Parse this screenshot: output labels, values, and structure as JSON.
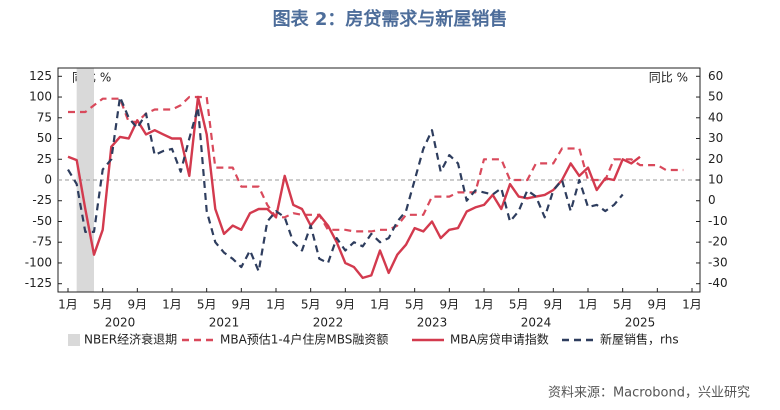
{
  "chart_data": {
    "type": "line",
    "title": "图表 2：房贷需求与新屋销售",
    "source": "资料来源：Macrobond，兴业研究",
    "y_unit_label": "同比 %",
    "y2_unit_label": "同比 %",
    "x": [
      "2020-01",
      "2020-02",
      "2020-03",
      "2020-04",
      "2020-05",
      "2020-06",
      "2020-07",
      "2020-08",
      "2020-09",
      "2020-10",
      "2020-11",
      "2020-12",
      "2021-01",
      "2021-02",
      "2021-03",
      "2021-04",
      "2021-05",
      "2021-06",
      "2021-07",
      "2021-08",
      "2021-09",
      "2021-10",
      "2021-11",
      "2021-12",
      "2022-01",
      "2022-02",
      "2022-03",
      "2022-04",
      "2022-05",
      "2022-06",
      "2022-07",
      "2022-08",
      "2022-09",
      "2022-10",
      "2022-11",
      "2022-12",
      "2023-01",
      "2023-02",
      "2023-03",
      "2023-04",
      "2023-05",
      "2023-06",
      "2023-07",
      "2023-08",
      "2023-09",
      "2023-10",
      "2023-11",
      "2023-12",
      "2024-01",
      "2024-02",
      "2024-03",
      "2024-04",
      "2024-05",
      "2024-06",
      "2024-07",
      "2024-08",
      "2024-09",
      "2024-10",
      "2024-11",
      "2024-12",
      "2025-01",
      "2025-02",
      "2025-03",
      "2025-04",
      "2025-05",
      "2025-06",
      "2025-07",
      "2025-08",
      "2025-09",
      "2025-10",
      "2025-11",
      "2025-12"
    ],
    "xlim": [
      "2020-01",
      "2026-01"
    ],
    "xticks": [
      {
        "value": "2020-01",
        "label": "1月"
      },
      {
        "value": "2020-05",
        "label": "5月"
      },
      {
        "value": "2020-09",
        "label": "9月"
      },
      {
        "value": "2021-01",
        "label": "1月"
      },
      {
        "value": "2021-05",
        "label": "5月"
      },
      {
        "value": "2021-09",
        "label": "9月"
      },
      {
        "value": "2022-01",
        "label": "1月"
      },
      {
        "value": "2022-05",
        "label": "5月"
      },
      {
        "value": "2022-09",
        "label": "9月"
      },
      {
        "value": "2023-01",
        "label": "1月"
      },
      {
        "value": "2023-05",
        "label": "5月"
      },
      {
        "value": "2023-09",
        "label": "9月"
      },
      {
        "value": "2024-01",
        "label": "1月"
      },
      {
        "value": "2024-05",
        "label": "5月"
      },
      {
        "value": "2024-09",
        "label": "9月"
      },
      {
        "value": "2025-01",
        "label": "1月"
      },
      {
        "value": "2025-05",
        "label": "5月"
      },
      {
        "value": "2025-09",
        "label": "9月"
      },
      {
        "value": "2026-01",
        "label": "1月"
      }
    ],
    "years": [
      "2020",
      "2021",
      "2022",
      "2023",
      "2024",
      "2025"
    ],
    "ylim": [
      -135,
      135
    ],
    "yticks": [
      125,
      100,
      75,
      50,
      25,
      0,
      -25,
      -50,
      -75,
      -100,
      -125
    ],
    "y2lim": [
      -44,
      64
    ],
    "y2ticks": [
      60,
      50,
      40,
      30,
      20,
      10,
      0,
      -10,
      -20,
      -30,
      -40
    ],
    "shaded": {
      "name": "NBER经济衰退期",
      "color": "#d9d9d9",
      "start": "2020-02",
      "end": "2020-04"
    },
    "series": [
      {
        "name": "MBA预估1-4户住房MBS融资额",
        "color": "#d9495b",
        "dashed": true,
        "values": [
          82,
          82,
          82,
          90,
          98,
          98,
          98,
          70,
          70,
          80,
          85,
          85,
          85,
          90,
          100,
          100,
          100,
          15,
          15,
          15,
          -8,
          -8,
          -8,
          -30,
          -45,
          -45,
          -40,
          -42,
          -42,
          -42,
          -60,
          -60,
          -60,
          -62,
          -62,
          -62,
          -60,
          -60,
          -55,
          -42,
          -42,
          -42,
          -20,
          -20,
          -20,
          -15,
          -15,
          -15,
          25,
          25,
          25,
          0,
          0,
          0,
          20,
          20,
          20,
          38,
          38,
          38,
          0,
          0,
          0,
          25,
          25,
          25,
          18,
          18,
          18,
          12,
          12,
          12
        ]
      },
      {
        "name": "MBA房贷申请指数",
        "color": "#d33a4e",
        "dashed": false,
        "values": [
          28,
          24,
          -35,
          -90,
          -60,
          40,
          52,
          50,
          72,
          55,
          60,
          55,
          50,
          50,
          5,
          100,
          55,
          -35,
          -65,
          -55,
          -60,
          -40,
          -35,
          -35,
          -45,
          5,
          -30,
          -35,
          -55,
          -42,
          -55,
          -75,
          -100,
          -105,
          -118,
          -115,
          -85,
          -112,
          -90,
          -78,
          -58,
          -62,
          -50,
          -70,
          -60,
          -58,
          -38,
          -33,
          -30,
          -18,
          -35,
          -5,
          -20,
          -22,
          -20,
          -18,
          -12,
          0,
          20,
          5,
          15,
          -12,
          2,
          0,
          25,
          20,
          28,
          null,
          null,
          null,
          null,
          null
        ]
      },
      {
        "name": "新屋销售，rhs",
        "color": "#2e3d5e",
        "dashed": true,
        "axis": "y2",
        "values": [
          15,
          8,
          -15,
          -15,
          15,
          20,
          50,
          40,
          35,
          42,
          22,
          24,
          25,
          14,
          30,
          45,
          -5,
          -20,
          -25,
          -28,
          -32,
          -24,
          -34,
          -10,
          -5,
          -8,
          -20,
          -24,
          -12,
          -28,
          -30,
          -18,
          -24,
          -20,
          -22,
          -16,
          -20,
          -18,
          -10,
          -5,
          10,
          25,
          34,
          14,
          22,
          18,
          0,
          5,
          4,
          3,
          6,
          -10,
          -5,
          5,
          2,
          -8,
          5,
          10,
          -5,
          10,
          -3,
          -2,
          -5,
          -2,
          3,
          null,
          null,
          null,
          null,
          null,
          null,
          null
        ]
      }
    ]
  }
}
